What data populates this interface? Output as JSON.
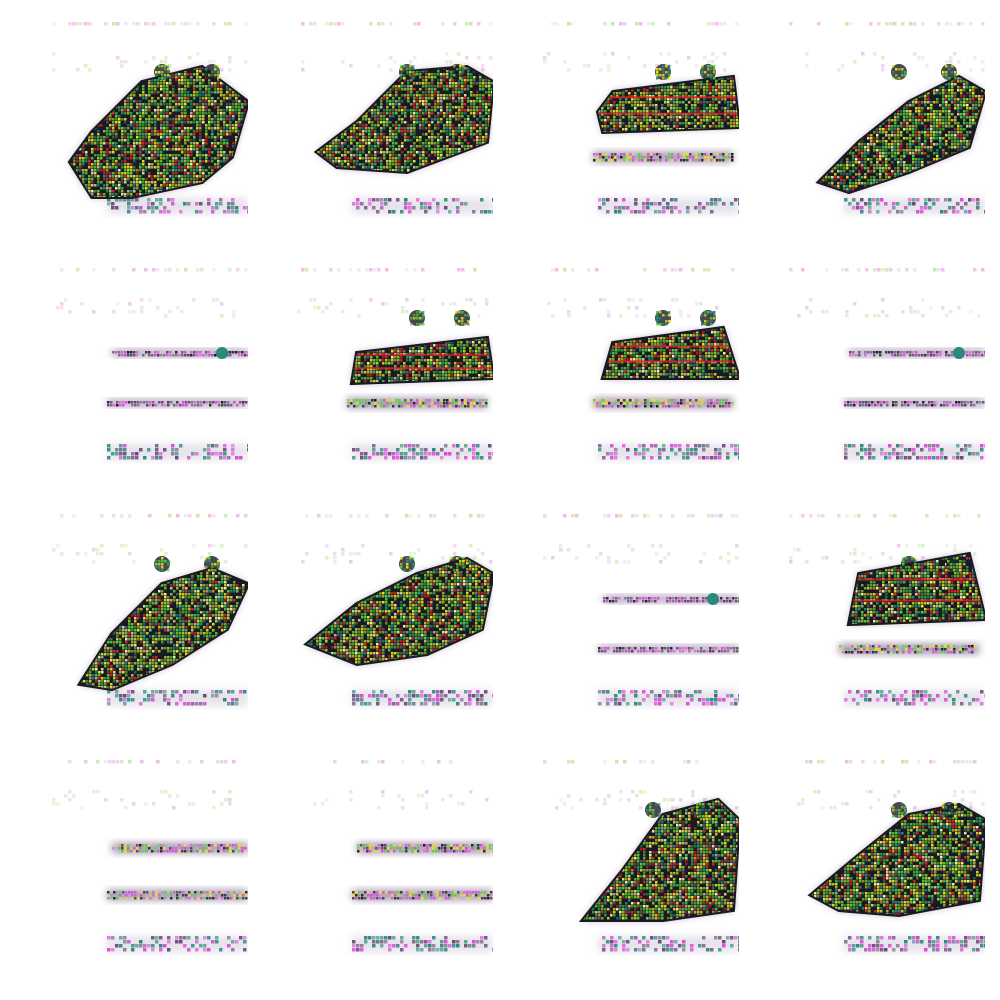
{
  "figure": {
    "kind": "generated-image-sample-grid",
    "rows": 4,
    "cols": 4,
    "background": "#ffffff",
    "palette": {
      "magenta": "#d94ad9",
      "purple": "#6b4a7a",
      "dark": "#1a1a24",
      "yellow": "#e6e61f",
      "green": "#4fd23a",
      "red": "#e0222a",
      "teal": "#2a8a7a",
      "shadow": "#b9aec4"
    },
    "samples": [
      {
        "type": "blob-large",
        "variant": 0
      },
      {
        "type": "blob-large",
        "variant": 1
      },
      {
        "type": "blob-bars",
        "variant": 0
      },
      {
        "type": "blob-large",
        "variant": 2
      },
      {
        "type": "lines-thin",
        "variant": 0
      },
      {
        "type": "blob-bars",
        "variant": 1
      },
      {
        "type": "blob-bars",
        "variant": 2
      },
      {
        "type": "lines-thin",
        "variant": 1
      },
      {
        "type": "blob-large",
        "variant": 3
      },
      {
        "type": "blob-large",
        "variant": 4
      },
      {
        "type": "lines-thin",
        "variant": 2
      },
      {
        "type": "blob-bars",
        "variant": 3
      },
      {
        "type": "lines-thick",
        "variant": 0
      },
      {
        "type": "lines-thick",
        "variant": 1
      },
      {
        "type": "blob-large",
        "variant": 5
      },
      {
        "type": "blob-large",
        "variant": 6
      }
    ]
  }
}
